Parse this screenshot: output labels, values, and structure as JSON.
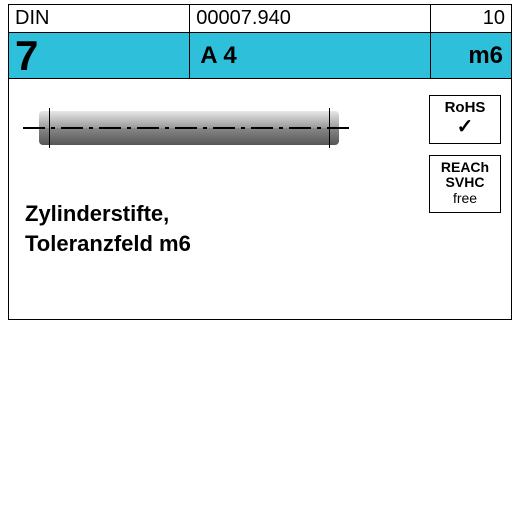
{
  "header": {
    "row1": {
      "c1": "DIN",
      "c2": "00007.940",
      "c3": "10"
    },
    "row2": {
      "c1": "7",
      "c2": "A 4",
      "c3": "m6"
    },
    "cyan_color": "#2ec0db"
  },
  "description": {
    "line1": "Zylinderstifte,",
    "line2": "Toleranzfeld m6"
  },
  "badges": {
    "rohs": {
      "label": "RoHS",
      "check": "✓"
    },
    "reach": {
      "l1": "REACh",
      "l2": "SVHC",
      "l3": "free"
    }
  },
  "colors": {
    "border": "#000000",
    "background": "#ffffff",
    "pin_light": "#e8e8e8",
    "pin_mid": "#9a9a9a",
    "pin_dark": "#555555"
  }
}
